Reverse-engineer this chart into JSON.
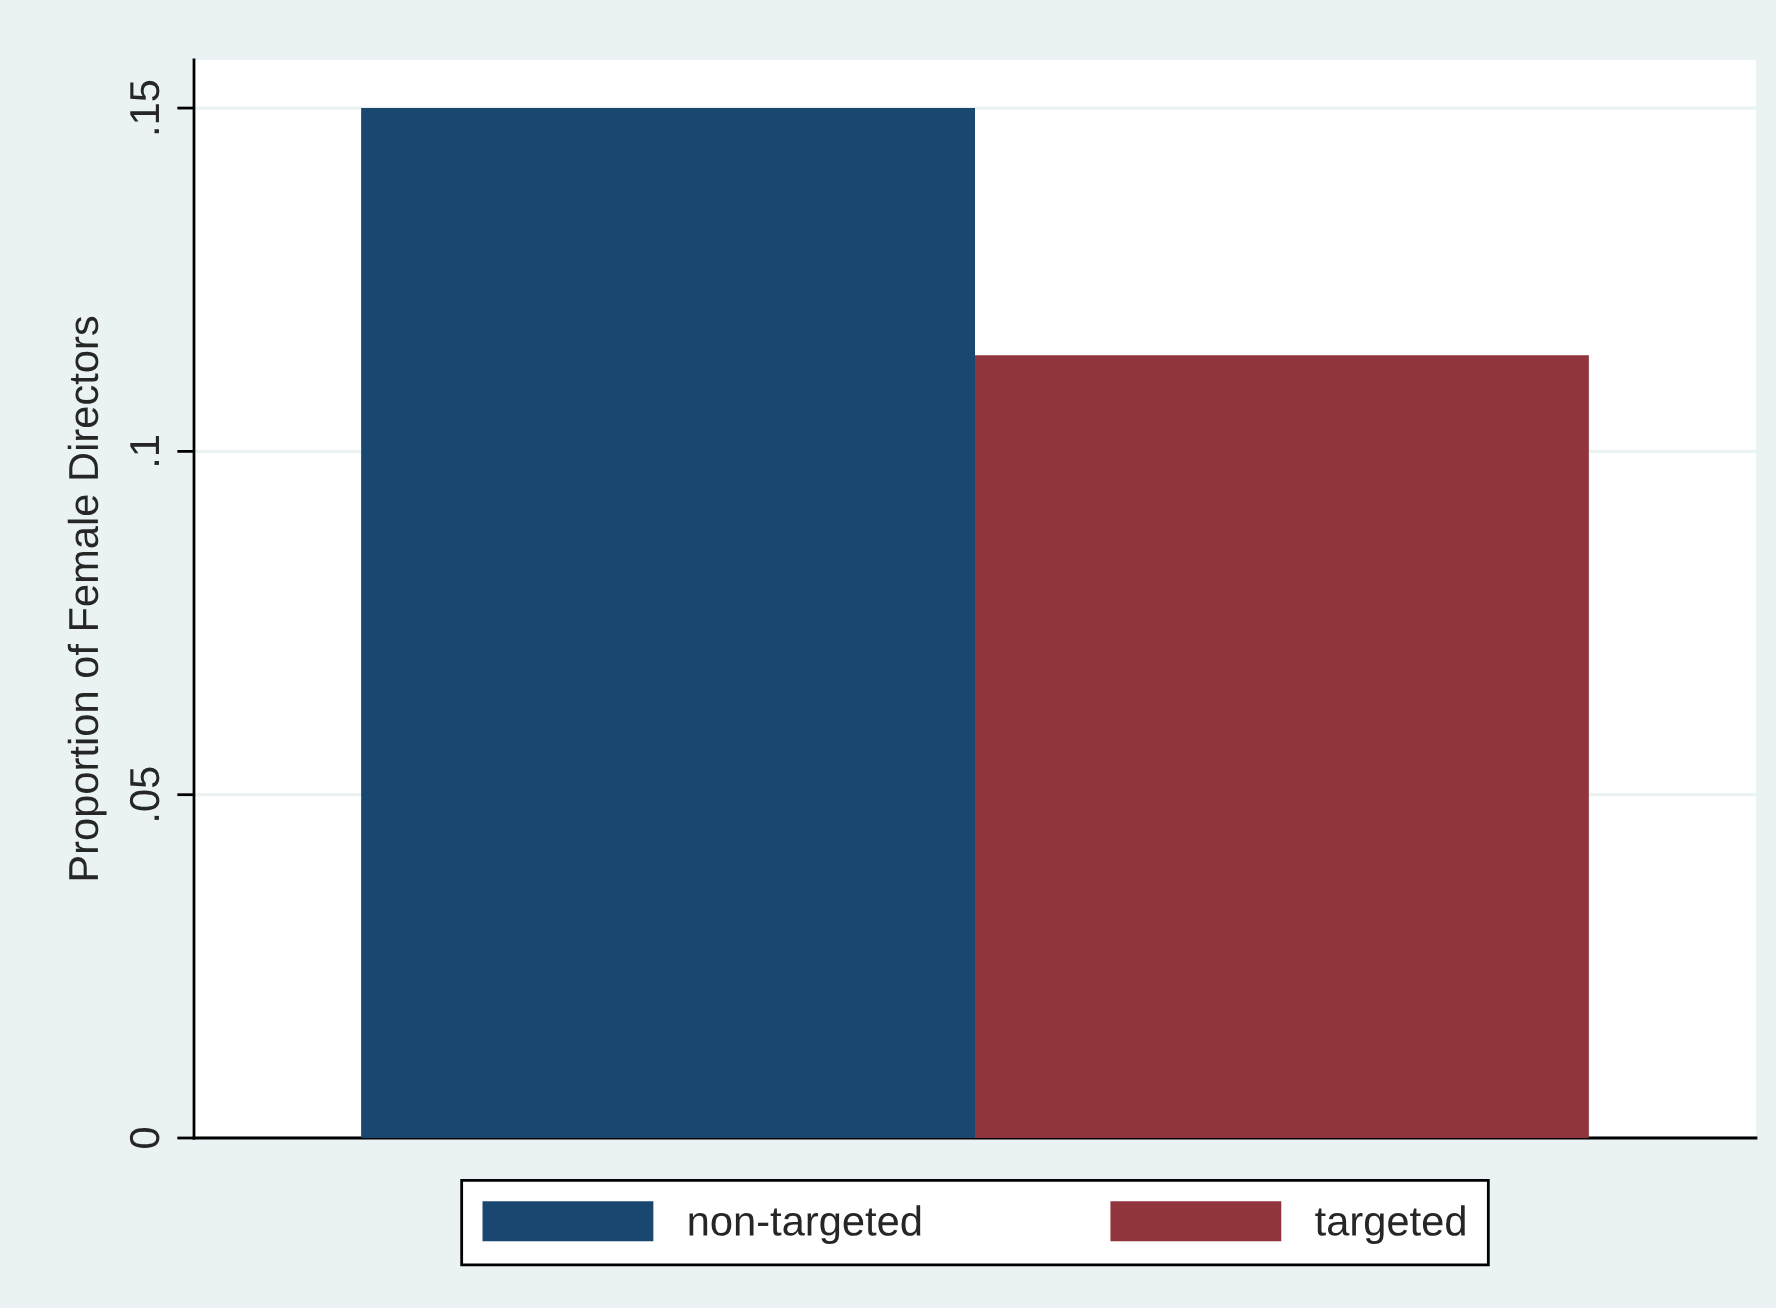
{
  "chart_data": {
    "type": "bar",
    "ylabel": "Proportion of Female Directors",
    "categories": [
      null
    ],
    "series": [
      {
        "name": "non-targeted",
        "color": "#1a476f",
        "values": [
          0.15
        ]
      },
      {
        "name": "targeted",
        "color": "#90353b",
        "values": [
          0.114
        ]
      }
    ],
    "ylim": [
      0,
      0.157
    ],
    "yticks": [
      0,
      {
        "value": 0.05,
        "label": ".05"
      },
      {
        "value": 0.1,
        "label": ".1"
      },
      {
        "value": 0.15,
        "label": ".15"
      }
    ],
    "grid": "y",
    "legend": "bottom"
  }
}
